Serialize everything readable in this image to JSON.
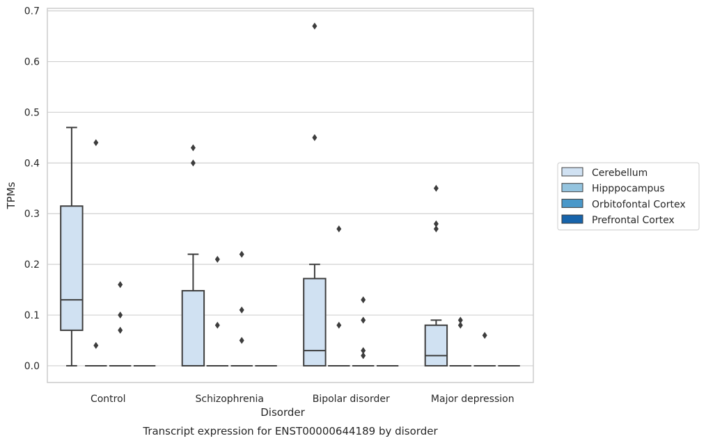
{
  "caption": "Transcript expression for ENST00000644189 by disorder",
  "colors": {
    "grid": "#d0d0d0",
    "frame": "#cccccc",
    "line": "#3d3d3d",
    "background": "#ffffff"
  },
  "chart_data": {
    "type": "box",
    "title": "",
    "xlabel": "Disorder",
    "ylabel": "TPMs",
    "ylim": [
      -0.033,
      0.705
    ],
    "yticks": [
      0.0,
      0.1,
      0.2,
      0.3,
      0.4,
      0.5,
      0.6,
      0.7
    ],
    "ytick_labels": [
      "0.0",
      "0.1",
      "0.2",
      "0.3",
      "0.4",
      "0.5",
      "0.6",
      "0.7"
    ],
    "categories": [
      "Control",
      "Schizophrenia",
      "Bipolar disorder",
      "Major depression"
    ],
    "grid": "horizontal",
    "legend_position": "right",
    "series": [
      {
        "name": "Cerebellum",
        "color": "#d0e1f2",
        "boxes": [
          {
            "whisker_low": 0.0,
            "q1": 0.07,
            "median": 0.13,
            "q3": 0.315,
            "whisker_high": 0.47,
            "outliers": []
          },
          {
            "whisker_low": 0.0,
            "q1": 0.0,
            "median": 0.0,
            "q3": 0.148,
            "whisker_high": 0.22,
            "outliers": [
              0.4,
              0.43
            ]
          },
          {
            "whisker_low": 0.0,
            "q1": 0.0,
            "median": 0.03,
            "q3": 0.172,
            "whisker_high": 0.2,
            "outliers": [
              0.45,
              0.67
            ]
          },
          {
            "whisker_low": 0.0,
            "q1": 0.0,
            "median": 0.02,
            "q3": 0.08,
            "whisker_high": 0.09,
            "outliers": [
              0.27,
              0.28,
              0.35
            ]
          }
        ]
      },
      {
        "name": "Hipppocampus",
        "color": "#94c4df",
        "boxes": [
          {
            "whisker_low": 0.0,
            "q1": 0.0,
            "median": 0.0,
            "q3": 0.0,
            "whisker_high": 0.0,
            "outliers": [
              0.04,
              0.44
            ]
          },
          {
            "whisker_low": 0.0,
            "q1": 0.0,
            "median": 0.0,
            "q3": 0.0,
            "whisker_high": 0.0,
            "outliers": [
              0.08,
              0.21
            ]
          },
          {
            "whisker_low": 0.0,
            "q1": 0.0,
            "median": 0.0,
            "q3": 0.0,
            "whisker_high": 0.0,
            "outliers": [
              0.08,
              0.27
            ]
          },
          {
            "whisker_low": 0.0,
            "q1": 0.0,
            "median": 0.0,
            "q3": 0.0,
            "whisker_high": 0.0,
            "outliers": [
              0.08,
              0.09
            ]
          }
        ]
      },
      {
        "name": "Orbitofontal Cortex",
        "color": "#4a98c9",
        "boxes": [
          {
            "whisker_low": 0.0,
            "q1": 0.0,
            "median": 0.0,
            "q3": 0.0,
            "whisker_high": 0.0,
            "outliers": [
              0.07,
              0.1,
              0.16
            ]
          },
          {
            "whisker_low": 0.0,
            "q1": 0.0,
            "median": 0.0,
            "q3": 0.0,
            "whisker_high": 0.0,
            "outliers": [
              0.05,
              0.11,
              0.22
            ]
          },
          {
            "whisker_low": 0.0,
            "q1": 0.0,
            "median": 0.0,
            "q3": 0.0,
            "whisker_high": 0.0,
            "outliers": [
              0.02,
              0.03,
              0.09,
              0.13
            ]
          },
          {
            "whisker_low": 0.0,
            "q1": 0.0,
            "median": 0.0,
            "q3": 0.0,
            "whisker_high": 0.0,
            "outliers": [
              0.06
            ]
          }
        ]
      },
      {
        "name": "Prefrontal Cortex",
        "color": "#1764ab",
        "boxes": [
          {
            "whisker_low": 0.0,
            "q1": 0.0,
            "median": 0.0,
            "q3": 0.0,
            "whisker_high": 0.0,
            "outliers": []
          },
          {
            "whisker_low": 0.0,
            "q1": 0.0,
            "median": 0.0,
            "q3": 0.0,
            "whisker_high": 0.0,
            "outliers": []
          },
          {
            "whisker_low": 0.0,
            "q1": 0.0,
            "median": 0.0,
            "q3": 0.0,
            "whisker_high": 0.0,
            "outliers": []
          },
          {
            "whisker_low": 0.0,
            "q1": 0.0,
            "median": 0.0,
            "q3": 0.0,
            "whisker_high": 0.0,
            "outliers": []
          }
        ]
      }
    ]
  }
}
